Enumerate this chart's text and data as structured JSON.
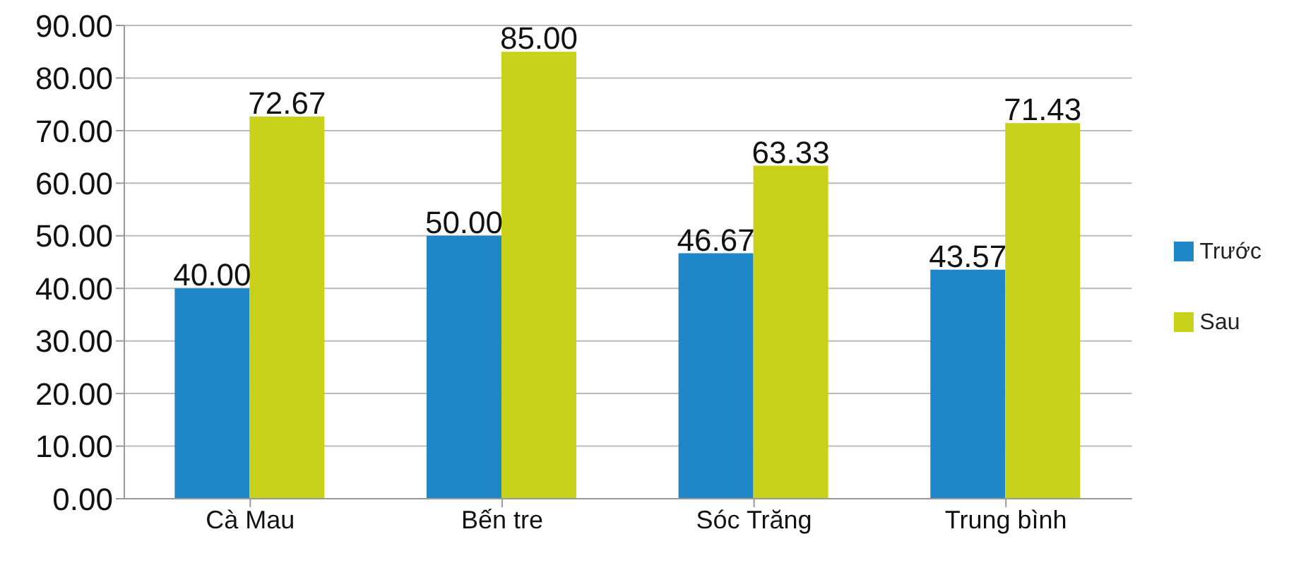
{
  "chart_data": {
    "type": "bar",
    "categories": [
      "Cà Mau",
      "Bến tre",
      "Sóc Trăng",
      "Trung bình"
    ],
    "series": [
      {
        "name": "Trước",
        "color": "#1f86c8",
        "values": [
          40,
          50,
          46.67,
          43.57
        ],
        "value_labels": [
          "40.00",
          "50.00",
          "46.67",
          "43.57"
        ]
      },
      {
        "name": "Sau",
        "color": "#c9d21a",
        "values": [
          72.67,
          85,
          63.33,
          71.43
        ],
        "value_labels": [
          "72.67",
          "85.00",
          "63.33",
          "71.43"
        ]
      }
    ],
    "ylim": [
      0,
      90
    ],
    "yticks": [
      {
        "value": 0,
        "label": "0.00"
      },
      {
        "value": 10,
        "label": "10.00"
      },
      {
        "value": 20,
        "label": "20.00"
      },
      {
        "value": 30,
        "label": "30.00"
      },
      {
        "value": 40,
        "label": "40.00"
      },
      {
        "value": 50,
        "label": "50.00"
      },
      {
        "value": 60,
        "label": "60.00"
      },
      {
        "value": 70,
        "label": "70.00"
      },
      {
        "value": 80,
        "label": "80.00"
      },
      {
        "value": 90,
        "label": "90.00"
      }
    ],
    "grid": "y",
    "legend": "right"
  }
}
